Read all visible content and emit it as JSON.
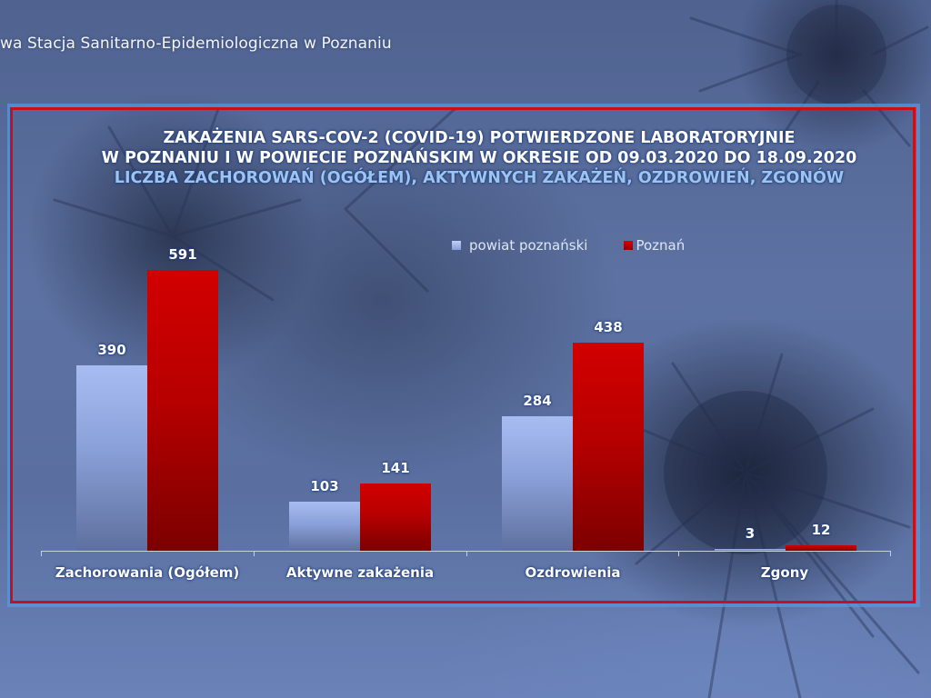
{
  "header": {
    "organization": "wa Stacja Sanitarno-Epidemiologiczna w Poznaniu"
  },
  "colors": {
    "frame_border": "#c8101a",
    "series_powiat": "#a7bdf2",
    "series_poznan": "#c80000"
  },
  "chart_data": {
    "type": "bar",
    "title": [
      "ZAKAŻENIA SARS-COV-2 (COVID-19) POTWIERDZONE LABORATORYJNIE",
      "W POZNANIU I W POWIECIE POZNAŃSKIM W OKRESIE OD 09.03.2020 DO 18.09.2020"
    ],
    "subtitle": "LICZBA ZACHOROWAŃ (OGÓŁEM), AKTYWNYCH ZAKAŻEŃ, OZDROWIEŃ, ZGONÓW",
    "categories": [
      "Zachorowania (Ogółem)",
      "Aktywne zakażenia",
      "Ozdrowienia",
      "Zgony"
    ],
    "series": [
      {
        "name": "powiat poznański",
        "values": [
          390,
          103,
          284,
          3
        ]
      },
      {
        "name": "Poznań",
        "values": [
          591,
          141,
          438,
          12
        ]
      }
    ],
    "xlabel": "",
    "ylabel": "",
    "ylim": [
      0,
      591
    ],
    "grid": false,
    "legend_position": "top-right",
    "data_labels": true
  }
}
